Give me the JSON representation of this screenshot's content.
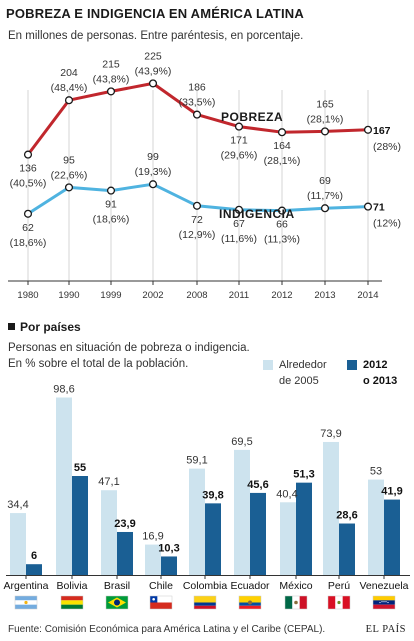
{
  "header": {
    "title": "POBREZA E INDIGENCIA EN AMÉRICA LATINA",
    "subtitle": "En millones de personas. Entre paréntesis, en porcentaje."
  },
  "colors": {
    "pobreza": "#c1272d",
    "indigencia": "#4fb3e0",
    "bar_2005": "#cde3ee",
    "bar_2012": "#1a5f94",
    "grid": "#bbbbbb",
    "axis": "#333333"
  },
  "chart_data": [
    {
      "type": "line",
      "x": [
        "1980",
        "1990",
        "1999",
        "2002",
        "2008",
        "2011",
        "2012",
        "2013",
        "2014"
      ],
      "series": [
        {
          "name": "POBREZA",
          "values": [
            136,
            204,
            215,
            225,
            186,
            171,
            164,
            165,
            167
          ],
          "percent_labels": [
            "(40,5%)",
            "(48,4%)",
            "(43,8%)",
            "(43,9%)",
            "(33,5%)",
            "(29,6%)",
            "(28,1%)",
            "(28,1%)",
            "(28%)"
          ]
        },
        {
          "name": "INDIGENCIA",
          "values": [
            62,
            95,
            91,
            99,
            72,
            67,
            66,
            69,
            71
          ],
          "percent_labels": [
            "(18,6%)",
            "(22,6%)",
            "(18,6%)",
            "(19,3%)",
            "(12,9%)",
            "(11,6%)",
            "(11,3%)",
            "(11,7%)",
            "(12%)"
          ]
        }
      ],
      "grid": "vertical"
    },
    {
      "type": "bar",
      "section_title": "Por países",
      "subtitle_lines": [
        "Personas en situación de pobreza o indigencia.",
        "En % sobre el total de la población."
      ],
      "legend": {
        "placement": "top-right",
        "early_label_lines": [
          "Alrededor",
          "de 2005"
        ],
        "recent_label_lines": [
          "2012",
          "o 2013"
        ]
      },
      "categories": [
        "Argentina",
        "Bolivia",
        "Brasil",
        "Chile",
        "Colombia",
        "Ecuador",
        "México",
        "Perú",
        "Venezuela"
      ],
      "series": [
        {
          "name": "Alrededor de 2005",
          "values": [
            34.4,
            98.6,
            47.1,
            16.9,
            59.1,
            69.5,
            40.4,
            73.9,
            53
          ],
          "labels": [
            "34,4",
            "98,6",
            "47,1",
            "16,9",
            "59,1",
            "69,5",
            "40,4",
            "73,9",
            "53"
          ]
        },
        {
          "name": "2012 o 2013",
          "values": [
            6,
            55,
            23.9,
            10.3,
            39.8,
            45.6,
            51.3,
            28.6,
            41.9
          ],
          "labels": [
            "6",
            "55",
            "23,9",
            "10,3",
            "39,8",
            "45,6",
            "51,3",
            "28,6",
            "41,9"
          ]
        }
      ],
      "flags": [
        "argentina-flag-icon",
        "bolivia-flag-icon",
        "brazil-flag-icon",
        "chile-flag-icon",
        "colombia-flag-icon",
        "ecuador-flag-icon",
        "mexico-flag-icon",
        "peru-flag-icon",
        "venezuela-flag-icon"
      ]
    }
  ],
  "footer": {
    "source": "Fuente: Comisión Económica para América Latina y el Caribe (CEPAL).",
    "brand": "EL PAÍS"
  }
}
